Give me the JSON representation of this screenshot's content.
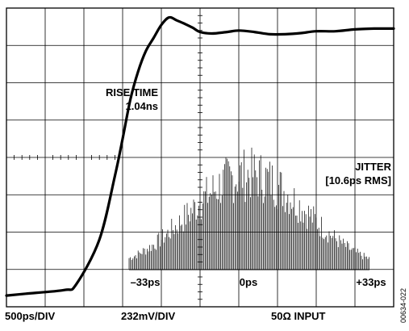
{
  "chart_data": {
    "type": "line",
    "title": "",
    "grid": true,
    "grid_divisions": {
      "x": 10,
      "y": 8
    },
    "series": [
      {
        "x": [
          -5,
          -4.5,
          -3.5,
          -3.2,
          -2.6,
          -2.2,
          -2.0,
          -1.8,
          -1.6,
          -1.4,
          -1.2,
          -1.0,
          -0.8,
          -0.6,
          -0.4,
          -0.2,
          0.0,
          0.3,
          0.7,
          1.0,
          1.4,
          1.8,
          2.2,
          2.6,
          3.0,
          3.5,
          4.0,
          4.5,
          5.0
        ],
        "values": [
          -3.7,
          -3.65,
          -3.55,
          -3.4,
          -2.2,
          -0.5,
          0.5,
          1.55,
          2.3,
          2.85,
          3.2,
          3.55,
          3.75,
          3.67,
          3.58,
          3.48,
          3.36,
          3.32,
          3.36,
          3.4,
          3.36,
          3.3,
          3.3,
          3.33,
          3.38,
          3.38,
          3.43,
          3.45,
          3.45
        ]
      }
    ],
    "rise_time_annotation": {
      "label": "RISE TIME",
      "value": "1.04ns"
    },
    "jitter_histogram": {
      "label": "JITTER",
      "value": "[10.6ps RMS]",
      "x_tick_labels": [
        "–33ps",
        "0ps",
        "+33ps"
      ]
    },
    "footer": {
      "horizontal_scale": "500ps/DIV",
      "vertical_scale": "232mV/DIV",
      "input": "50Ω INPUT"
    },
    "figure_code": "00634-022"
  }
}
